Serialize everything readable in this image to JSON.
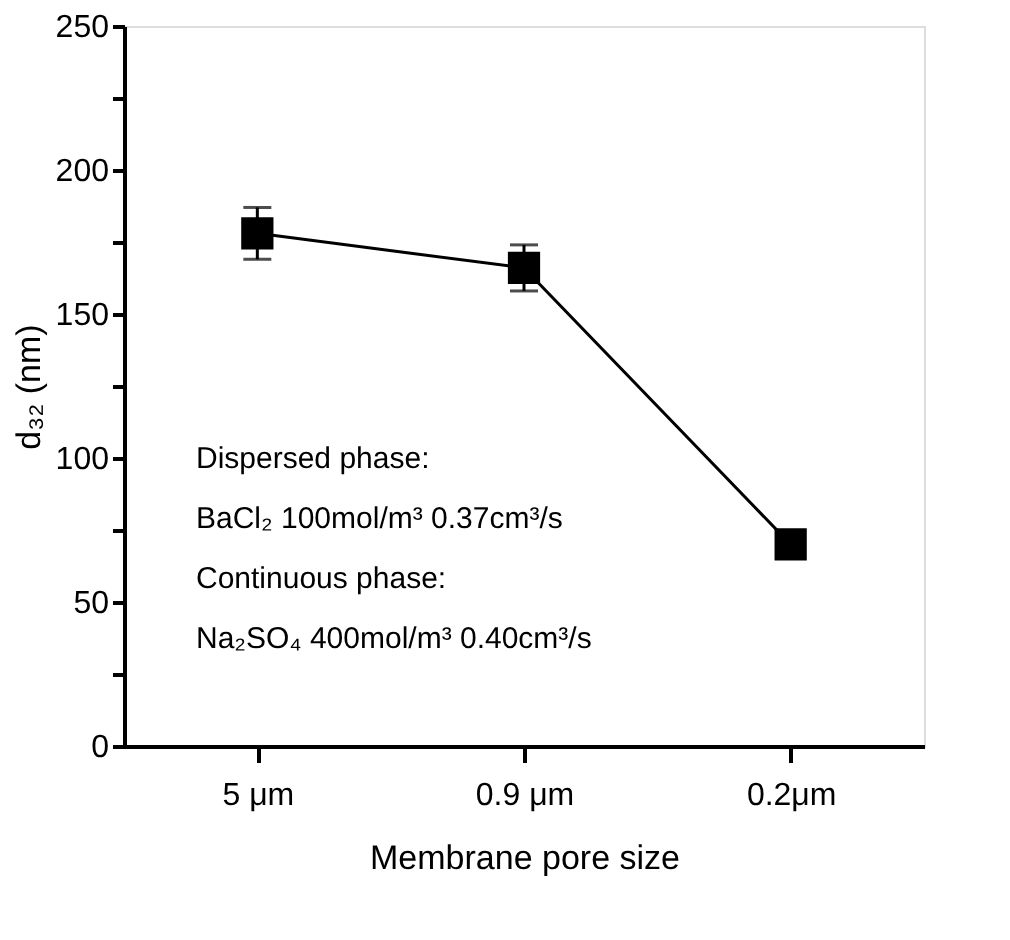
{
  "chart_data": {
    "type": "line",
    "xlabel": "Membrane pore size",
    "ylabel": "d₃₂ (nm)",
    "categories": [
      "5 μm",
      "0.9 μm",
      "0.2μm"
    ],
    "series": [
      {
        "color": "#000000",
        "values": [
          178,
          166,
          70
        ],
        "errors": [
          [
            169,
            187
          ],
          [
            158,
            174
          ],
          null
        ]
      }
    ],
    "ylim": [
      0,
      250
    ],
    "yticks": [
      0,
      {
        "value": 25,
        "label": null
      },
      50,
      {
        "value": 75,
        "label": null
      },
      100,
      {
        "value": 125,
        "label": null
      },
      150,
      {
        "value": 175,
        "label": null
      },
      200,
      {
        "value": 225,
        "label": null
      },
      250
    ],
    "annotations": [
      "Dispersed phase:",
      "BaCl₂  100mol/m³   0.37cm³/s",
      "Continuous phase:",
      " Na₂SO₄  400mol/m³  0.40cm³/s"
    ],
    "marker": "square",
    "line_style": "solid",
    "grid": false
  }
}
